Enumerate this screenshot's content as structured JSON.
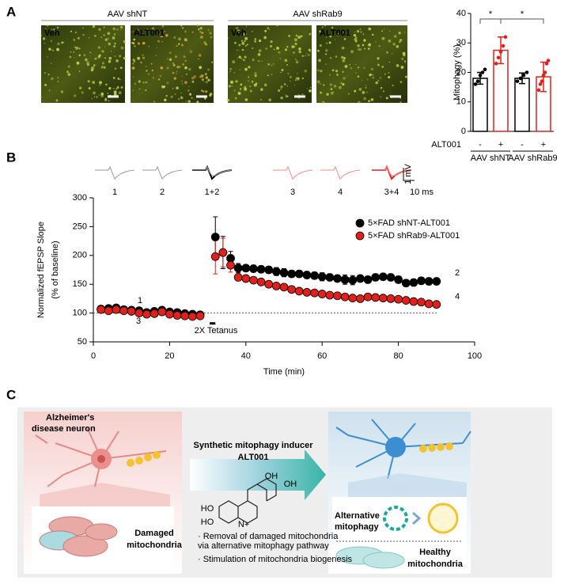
{
  "panel_labels": [
    "A",
    "B",
    "C"
  ],
  "micrographs": {
    "groups": [
      "AAV shNT",
      "AAV shRab9"
    ],
    "labels": [
      "Veh",
      "ALT001",
      "Veh",
      "ALT001"
    ]
  },
  "chart_data": [
    {
      "type": "bar",
      "ylabel": "Mitophagy (%)",
      "categories": [
        "-",
        "+",
        "-",
        "+"
      ],
      "row_label": "ALT001",
      "groups": [
        "AAV shNT",
        "AAV shRab9"
      ],
      "values": [
        18,
        27.5,
        18,
        18.5
      ],
      "errors": [
        2,
        4.5,
        1.8,
        5
      ],
      "colors": [
        "#000000",
        "#e0201b",
        "#000000",
        "#e0201b"
      ],
      "points": [
        [
          16,
          17,
          19,
          20,
          21
        ],
        [
          23,
          25,
          27,
          29,
          32
        ],
        [
          17,
          18,
          19,
          20
        ],
        [
          14,
          16,
          17,
          19,
          20,
          23,
          24
        ]
      ],
      "significance": [
        "*",
        "*"
      ],
      "ylim": [
        0,
        40
      ],
      "yticks": [
        0,
        10,
        20,
        30,
        40
      ]
    },
    {
      "type": "scatter",
      "xlabel": "Time (min)",
      "ylabel": [
        "Normalized fEPSP Slope",
        "(% of baseline)"
      ],
      "x": [
        2,
        4,
        6,
        8,
        10,
        12,
        14,
        16,
        18,
        20,
        22,
        24,
        26,
        28,
        32,
        34,
        36,
        38,
        40,
        42,
        44,
        46,
        48,
        50,
        52,
        54,
        56,
        58,
        60,
        62,
        64,
        66,
        68,
        70,
        72,
        74,
        76,
        78,
        80,
        82,
        84,
        86,
        88,
        90
      ],
      "series": [
        {
          "name": "5×FAD shNT-ALT001",
          "color": "#000000",
          "values": [
            107,
            108,
            109,
            106,
            105,
            104,
            101,
            103,
            105,
            102,
            101,
            99,
            98,
            97,
            232,
            205,
            195,
            178,
            178,
            177,
            176,
            175,
            172,
            170,
            168,
            168,
            166,
            165,
            163,
            162,
            160,
            158,
            157,
            160,
            158,
            162,
            163,
            162,
            158,
            152,
            153,
            156,
            155,
            155
          ],
          "errors": [
            4,
            3,
            3,
            3,
            3,
            3,
            3,
            3,
            4,
            4,
            3,
            3,
            3,
            3,
            35,
            28,
            12,
            8,
            6,
            6,
            6,
            6,
            7,
            7,
            6,
            6,
            6,
            6,
            7,
            6,
            6,
            8,
            8,
            6,
            6,
            6,
            6,
            6,
            6,
            6,
            6,
            6,
            6,
            6
          ]
        },
        {
          "name": "5×FAD shRab9-ALT001",
          "color": "#e0201b",
          "values": [
            106,
            104,
            106,
            104,
            103,
            100,
            98,
            99,
            102,
            98,
            96,
            95,
            94,
            95,
            198,
            205,
            183,
            162,
            160,
            157,
            154,
            150,
            147,
            145,
            141,
            138,
            136,
            135,
            133,
            131,
            130,
            128,
            126,
            125,
            128,
            127,
            126,
            125,
            124,
            122,
            120,
            119,
            116,
            115
          ],
          "errors": [
            3,
            3,
            3,
            3,
            3,
            3,
            3,
            3,
            3,
            3,
            3,
            3,
            3,
            3,
            30,
            25,
            12,
            6,
            6,
            5,
            5,
            5,
            5,
            5,
            5,
            4,
            4,
            4,
            4,
            4,
            4,
            4,
            4,
            4,
            4,
            4,
            4,
            4,
            4,
            4,
            4,
            4,
            4,
            5
          ]
        }
      ],
      "baseline": 100,
      "annotations": [
        "1",
        "3",
        "2",
        "4",
        "2X Tetanus"
      ],
      "xlim": [
        0,
        100
      ],
      "xticks": [
        0,
        20,
        40,
        60,
        80,
        100
      ],
      "ylim": [
        50,
        300
      ],
      "yticks": [
        50,
        100,
        150,
        200,
        250,
        300
      ]
    }
  ],
  "traces": {
    "labels": [
      "1",
      "2",
      "1+2",
      "3",
      "4",
      "3+4"
    ],
    "scale": [
      "1 mV",
      "10 ms"
    ]
  },
  "diagram": {
    "left_title": [
      "Alzheimer's",
      "disease neuron"
    ],
    "left_caption": [
      "Damaged",
      "mitochondria"
    ],
    "arrow_title": [
      "Synthetic mitophagy inducer",
      "ALT001"
    ],
    "chem": [
      "OH",
      "OH",
      "HO",
      "HO",
      "N+"
    ],
    "bullets": [
      [
        "· Removal of damaged mitochondria",
        "via alternative mitophagy pathway"
      ],
      [
        "· Stimulation of mitochondria biogenesis"
      ]
    ],
    "right_mid": [
      "Alternative",
      "mitophagy"
    ],
    "right_caption": [
      "Healthy",
      "mitochondria"
    ]
  }
}
